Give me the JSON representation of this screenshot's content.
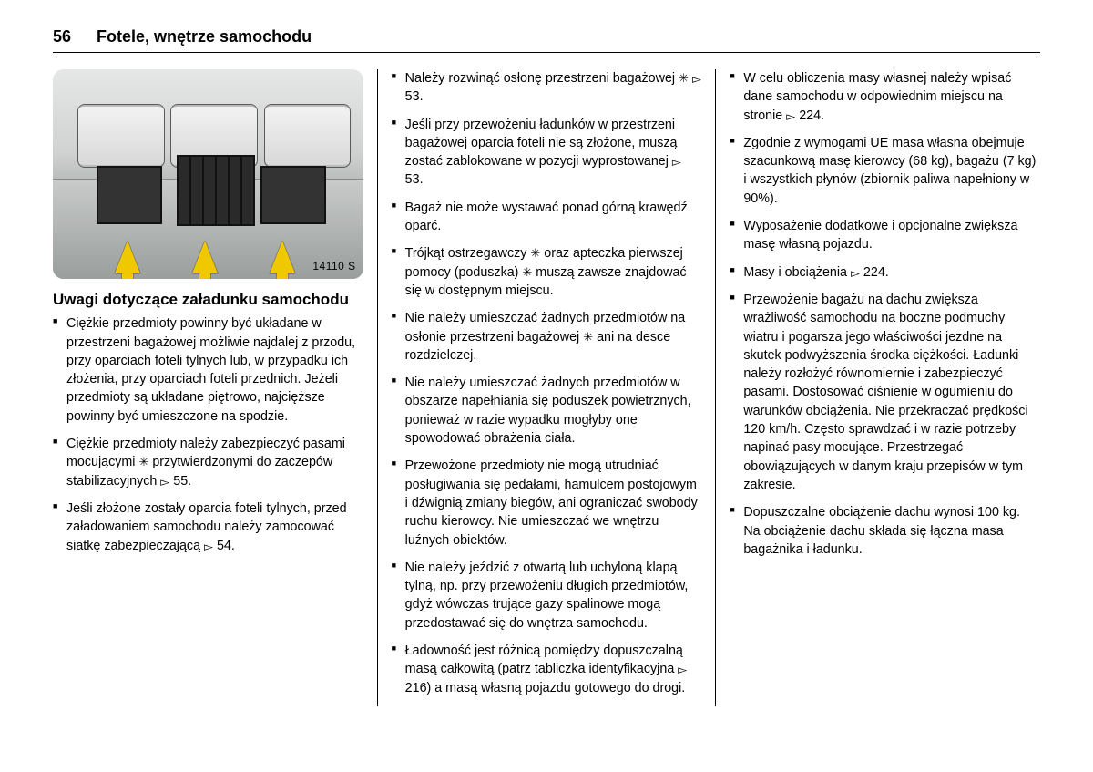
{
  "page_number": "56",
  "chapter_title": "Fotele, wnętrze samochodu",
  "illustration_tag": "14110 S",
  "subheading": "Uwagi dotyczące załadunku samochodu",
  "symbols": {
    "option": "✳",
    "ref": "▻"
  },
  "col1_items": [
    "Ciężkie przedmioty powinny być układane w przestrzeni bagażowej możliwie najdalej z przodu, przy oparciach foteli tylnych lub, w przypadku ich złożenia, przy oparciach foteli przednich. Jeżeli przedmioty są układane piętrowo, najcięższe powinny być umieszczone na spodzie.",
    "Ciężkie przedmioty należy zabezpieczyć pasami mocującymi ✳ przytwierdzonymi do zaczepów stabilizacyjnych ▻ 55.",
    "Jeśli złożone zostały oparcia foteli tylnych, przed załadowaniem samochodu należy zamocować siatkę zabezpieczającą ▻ 54."
  ],
  "col2_items": [
    "Należy rozwinąć osłonę przestrzeni bagażowej ✳ ▻ 53.",
    "Jeśli przy przewożeniu ładunków w przestrzeni bagażowej oparcia foteli nie są złożone, muszą zostać zablokowane w pozycji wyprostowanej ▻ 53.",
    "Bagaż nie może wystawać ponad górną krawędź oparć.",
    "Trójkąt ostrzegawczy ✳ oraz apteczka pierwszej pomocy (poduszka) ✳ muszą zawsze znajdować się w dostępnym miejscu.",
    "Nie należy umieszczać żadnych przedmiotów na osłonie przestrzeni bagażowej ✳ ani na desce rozdzielczej.",
    "Nie należy umieszczać żadnych przedmiotów w obszarze napełniania się poduszek powietrznych, ponieważ w razie wypadku mogłyby one spowodować obrażenia ciała.",
    "Przewożone przedmioty nie mogą utrudniać posługiwania się pedałami, hamulcem postojowym i dźwignią zmiany biegów, ani ograniczać swobody ruchu kierowcy. Nie umieszczać we wnętrzu luźnych obiektów.",
    "Nie należy jeździć z otwartą lub uchyloną klapą tylną, np. przy przewożeniu długich przedmiotów, gdyż wówczas trujące gazy spalinowe mogą przedostawać się do wnętrza samochodu.",
    "Ładowność jest różnicą pomiędzy dopuszczalną masą całkowitą (patrz tabliczka identyfikacyjna ▻ 216) a masą własną pojazdu gotowego do drogi."
  ],
  "col3_items": [
    "W celu obliczenia masy własnej należy wpisać dane samochodu w odpowiednim miejscu na stronie ▻ 224.",
    "Zgodnie z wymogami UE masa własna obejmuje szacunkową masę kierowcy (68 kg), bagażu (7 kg) i wszystkich płynów (zbiornik paliwa napełniony w 90%).",
    "Wyposażenie dodatkowe i opcjonalne zwiększa masę własną pojazdu.",
    "Masy i obciążenia ▻ 224.",
    "Przewożenie bagażu na dachu zwiększa wrażliwość samochodu na boczne podmuchy wiatru i pogarsza jego właściwości jezdne na skutek podwyższenia środka ciężkości. Ładunki należy rozłożyć równomiernie i zabezpieczyć pasami. Dostosować ciśnienie w ogumieniu do warunków obciążenia. Nie przekraczać prędkości 120 km/h. Często sprawdzać i w razie potrzeby napinać pasy mocujące. Przestrzegać obowiązujących w danym kraju przepisów w tym zakresie.",
    "Dopuszczalne obciążenie dachu wynosi 100 kg. Na obciążenie dachu składa się łączna masa bagażnika i ładunku."
  ]
}
